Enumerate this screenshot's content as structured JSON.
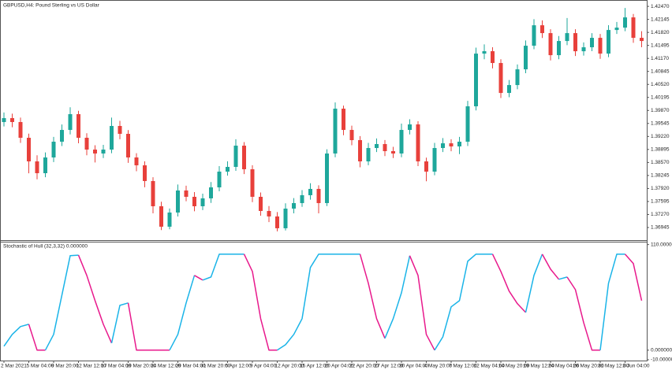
{
  "chart_data": [
    {
      "type": "candlestick",
      "title": "GBPUSD,H4:  Pound Sterling vs US Dollar",
      "bull_color": "#1ea79b",
      "bear_color": "#e8403b",
      "categories": [
        "2 Mar 2021",
        null,
        null,
        "5 Mar 04:00",
        null,
        null,
        "9 Mar 20:00",
        null,
        null,
        "12 Mar 12:00",
        null,
        null,
        "17 Mar 04:00",
        null,
        null,
        "19 Mar 20:00",
        null,
        null,
        "24 Mar 12:00",
        null,
        null,
        "29 Mar 04:00",
        null,
        null,
        "31 Mar 20:00",
        null,
        null,
        "5 Apr 12:00",
        null,
        null,
        "9 Apr 04:00",
        null,
        null,
        "12 Apr 20:00",
        null,
        null,
        "15 Apr 12:00",
        null,
        null,
        "20 Apr 04:00",
        null,
        null,
        "22 Apr 20:00",
        null,
        null,
        "27 Apr 12:00",
        null,
        null,
        "30 Apr 04:00",
        null,
        null,
        "4 May 20:00",
        null,
        null,
        "7 May 12:00",
        null,
        null,
        "12 May 04:00",
        null,
        null,
        "14 May 20:00",
        null,
        null,
        "19 May 12:00",
        null,
        null,
        "24 May 04:00",
        null,
        null,
        "26 May 20:00",
        null,
        null,
        "31 May 12:00",
        null,
        null,
        "3 Jun 04:00",
        null,
        null
      ],
      "open": [
        1.3958,
        1.39678,
        1.3958,
        1.39187,
        1.38597,
        1.38302,
        1.38695,
        1.39089,
        1.39383,
        1.39777,
        1.39187,
        1.38892,
        1.38794,
        1.38892,
        1.39482,
        1.39285,
        1.38695,
        1.38499,
        1.38106,
        1.37476,
        1.36965,
        1.37319,
        1.3787,
        1.37712,
        1.37476,
        1.37673,
        1.37948,
        1.38341,
        1.38459,
        1.3899,
        1.384,
        1.37712,
        1.37358,
        1.37221,
        1.36926,
        1.37417,
        1.37555,
        1.37752,
        1.37909,
        1.37555,
        1.38794,
        1.39914,
        1.39383,
        1.39128,
        1.38597,
        1.38931,
        1.3903,
        1.38853,
        1.38794,
        1.39383,
        1.39521,
        1.38597,
        1.38341,
        1.38931,
        1.39049,
        1.38971,
        1.39089,
        1.39973,
        1.4129,
        1.4135,
        1.41055,
        1.40307,
        1.40504,
        1.40897,
        1.41487,
        1.41998,
        1.41802,
        1.41251,
        1.41605,
        1.41802,
        1.41349,
        1.41448,
        1.41684,
        1.4129,
        1.4188,
        1.41939,
        1.42195,
        1.41684
      ],
      "high": [
        1.3982,
        1.3979,
        1.3969,
        1.3929,
        1.3875,
        1.3882,
        1.3921,
        1.3952,
        1.3995,
        1.3986,
        1.393,
        1.39,
        1.3901,
        1.3969,
        1.3961,
        1.3938,
        1.388,
        1.386,
        1.382,
        1.3759,
        1.3742,
        1.3802,
        1.3799,
        1.3783,
        1.3779,
        1.3808,
        1.3848,
        1.386,
        1.3915,
        1.3908,
        1.385,
        1.3782,
        1.3748,
        1.3733,
        1.3755,
        1.3768,
        1.3788,
        1.3805,
        1.38,
        1.389,
        1.4007,
        1.3999,
        1.3949,
        1.3923,
        1.3906,
        1.3917,
        1.3913,
        1.3896,
        1.3954,
        1.3965,
        1.396,
        1.3869,
        1.3906,
        1.3918,
        1.3915,
        1.3921,
        1.4011,
        1.4144,
        1.4152,
        1.4145,
        1.4115,
        1.4063,
        1.4102,
        1.4162,
        1.4215,
        1.4212,
        1.419,
        1.4173,
        1.4218,
        1.419,
        1.4157,
        1.418,
        1.4178,
        1.42,
        1.4208,
        1.4243,
        1.4228,
        1.4185
      ],
      "low": [
        1.3947,
        1.3945,
        1.3906,
        1.383,
        1.3815,
        1.382,
        1.3858,
        1.3898,
        1.3927,
        1.3905,
        1.3875,
        1.3857,
        1.3868,
        1.388,
        1.3915,
        1.3856,
        1.3835,
        1.3795,
        1.373,
        1.3688,
        1.369,
        1.3722,
        1.376,
        1.3735,
        1.3738,
        1.3756,
        1.3785,
        1.3824,
        1.3836,
        1.3828,
        1.3758,
        1.3724,
        1.3708,
        1.3685,
        1.3687,
        1.373,
        1.3746,
        1.3764,
        1.373,
        1.3748,
        1.387,
        1.3925,
        1.39,
        1.3845,
        1.385,
        1.3883,
        1.3873,
        1.3868,
        1.387,
        1.3927,
        1.3848,
        1.381,
        1.3825,
        1.3883,
        1.3885,
        1.3878,
        1.3898,
        1.3987,
        1.4115,
        1.4092,
        1.4018,
        1.402,
        1.404,
        1.408,
        1.414,
        1.4168,
        1.4112,
        1.4115,
        1.415,
        1.4123,
        1.4124,
        1.4135,
        1.4116,
        1.412,
        1.4178,
        1.4185,
        1.4156,
        1.4145
      ],
      "close": [
        1.39678,
        1.3958,
        1.39187,
        1.38597,
        1.38302,
        1.38695,
        1.39089,
        1.39383,
        1.39777,
        1.39187,
        1.38892,
        1.38794,
        1.38892,
        1.39482,
        1.39285,
        1.38695,
        1.38499,
        1.38106,
        1.37476,
        1.36965,
        1.37319,
        1.3787,
        1.37712,
        1.37476,
        1.37673,
        1.37948,
        1.38341,
        1.38459,
        1.3899,
        1.384,
        1.37712,
        1.37358,
        1.37221,
        1.36926,
        1.37417,
        1.37555,
        1.37752,
        1.37909,
        1.37555,
        1.38794,
        1.39914,
        1.39383,
        1.39128,
        1.38597,
        1.38931,
        1.3903,
        1.38853,
        1.38794,
        1.39383,
        1.39521,
        1.38597,
        1.38341,
        1.38931,
        1.39049,
        1.38971,
        1.39089,
        1.39973,
        1.4129,
        1.4135,
        1.41055,
        1.40307,
        1.40504,
        1.40897,
        1.41487,
        1.41998,
        1.41802,
        1.41251,
        1.41605,
        1.41802,
        1.41349,
        1.41448,
        1.41684,
        1.4129,
        1.4188,
        1.41939,
        1.42195,
        1.41684,
        1.41605
      ],
      "ylim": [
        1.3663,
        1.4259
      ],
      "yticks": [
        {
          "value": 1.4247,
          "label": "1.42470"
        },
        {
          "value": 1.42145,
          "label": "1.42145"
        },
        {
          "value": 1.4182,
          "label": "1.41820"
        },
        {
          "value": 1.41495,
          "label": "1.41495"
        },
        {
          "value": 1.4117,
          "label": "1.41170"
        },
        {
          "value": 1.40845,
          "label": "1.40845"
        },
        {
          "value": 1.4052,
          "label": "1.40520"
        },
        {
          "value": 1.40195,
          "label": "1.40195"
        },
        {
          "value": 1.3987,
          "label": "1.39870"
        },
        {
          "value": 1.39545,
          "label": "1.39545"
        },
        {
          "value": 1.3922,
          "label": "1.39220"
        },
        {
          "value": 1.38895,
          "label": "1.38895"
        },
        {
          "value": 1.3857,
          "label": "1.38570"
        },
        {
          "value": 1.38245,
          "label": "1.38245"
        },
        {
          "value": 1.3792,
          "label": "1.37920"
        },
        {
          "value": 1.37595,
          "label": "1.37595"
        },
        {
          "value": 1.3727,
          "label": "1.37270"
        },
        {
          "value": 1.36945,
          "label": "1.36945"
        }
      ]
    },
    {
      "type": "line",
      "title": "Stochastic of Hull (32,3,32) 0.000000",
      "rising_color": "#1ab4e8",
      "falling_color": "#e8198c",
      "values": [
        4.1,
        16.4,
        24.6,
        27.0,
        0,
        0,
        16.4,
        57.4,
        98.4,
        99,
        77.9,
        51.6,
        27.0,
        7.4,
        46.7,
        49.2,
        0,
        0,
        0,
        0,
        0,
        16.4,
        49.2,
        77.9,
        73.0,
        76.2,
        100,
        100,
        100,
        100,
        82.0,
        32.8,
        0,
        0,
        5.7,
        16.4,
        32.8,
        86.1,
        100,
        100,
        100,
        100,
        100,
        100,
        69.7,
        32.8,
        12.3,
        32.8,
        59.8,
        98.4,
        77.9,
        16.4,
        0,
        13.9,
        45.1,
        51.6,
        92.6,
        100,
        100,
        100,
        82.0,
        61.5,
        48.4,
        39.3,
        77.9,
        100,
        84.4,
        73.8,
        76.2,
        63.1,
        28.7,
        0,
        0,
        69.7,
        100,
        100,
        90.2,
        51.6
      ],
      "ylim": [
        -10,
        113
      ],
      "yticks": [
        {
          "value": 110,
          "label": "110.000000"
        },
        {
          "value": 0,
          "label": "0.000000"
        },
        {
          "value": -10,
          "label": "-10.000000"
        }
      ]
    }
  ]
}
